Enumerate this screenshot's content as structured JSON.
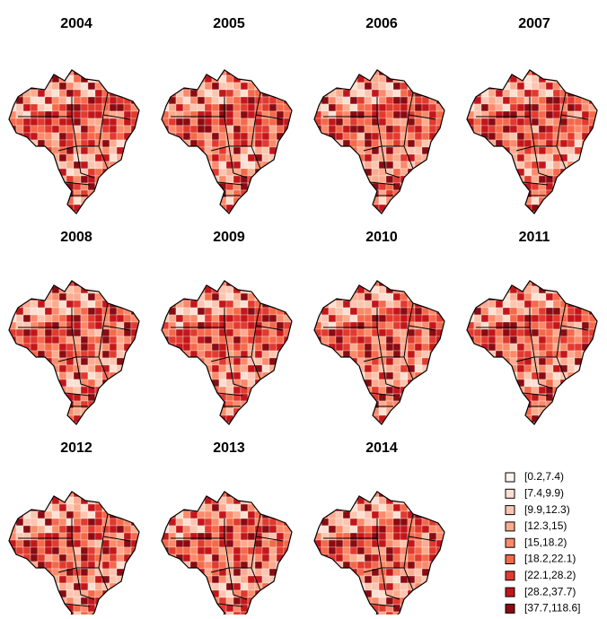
{
  "panels": [
    {
      "title": "2004"
    },
    {
      "title": "2005"
    },
    {
      "title": "2006"
    },
    {
      "title": "2007"
    },
    {
      "title": "2008"
    },
    {
      "title": "2009"
    },
    {
      "title": "2010"
    },
    {
      "title": "2011"
    },
    {
      "title": "2012"
    },
    {
      "title": "2013"
    },
    {
      "title": "2014"
    }
  ],
  "legend": {
    "items": [
      {
        "label": "[0.2,7.4)",
        "color": "#fff5f0"
      },
      {
        "label": "[7.4,9.9)",
        "color": "#fee0d2"
      },
      {
        "label": "[9.9,12.3)",
        "color": "#fcc5b0"
      },
      {
        "label": "[12.3,15)",
        "color": "#fcab8f"
      },
      {
        "label": "[15,18.2)",
        "color": "#fb8a6a"
      },
      {
        "label": "[18.2,22.1)",
        "color": "#f5694b"
      },
      {
        "label": "[22.1,28.2)",
        "color": "#e13a2f"
      },
      {
        "label": "[28.2,37.7)",
        "color": "#c3161b"
      },
      {
        "label": "[37.7,118.6]",
        "color": "#8a0b12"
      }
    ]
  }
}
